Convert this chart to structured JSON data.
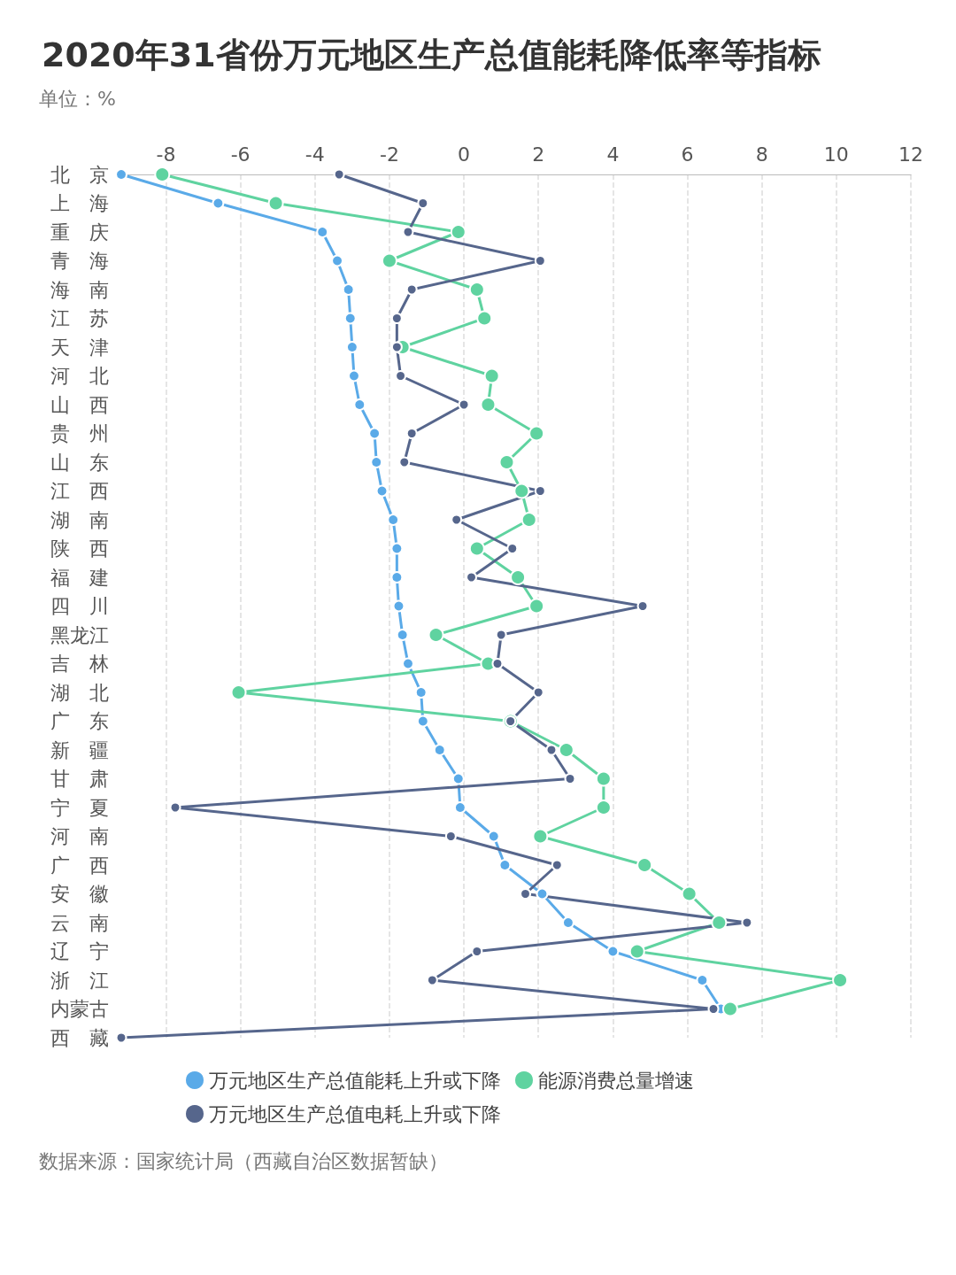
{
  "chart_data": {
    "type": "line",
    "orientation": "horizontal",
    "title": "2020年31省份万元地区生产总值能耗降低率等指标",
    "subtitle": "单位：%",
    "annotations": [
      "数据来源：国家统计局（西藏自治区数据暂缺）"
    ],
    "categories": [
      "北　京",
      "上　海",
      "重　庆",
      "青　海",
      "海　南",
      "江　苏",
      "天　津",
      "河　北",
      "山　西",
      "贵　州",
      "山　东",
      "江　西",
      "湖　南",
      "陕　西",
      "福　建",
      "四　川",
      "黑龙江",
      "吉　林",
      "湖　北",
      "广　东",
      "新　疆",
      "甘　肃",
      "宁　夏",
      "河　南",
      "广　西",
      "安　徽",
      "云　南",
      "辽　宁",
      "浙　江",
      "内蒙古",
      "西　藏"
    ],
    "series": [
      {
        "name": "万元地区生产总值能耗上升或下降",
        "color": "#5aaae8",
        "values": [
          -9.2,
          -6.6,
          -3.8,
          -3.4,
          -3.1,
          -3.05,
          -3.0,
          -2.95,
          -2.8,
          -2.4,
          -2.35,
          -2.2,
          -1.9,
          -1.8,
          -1.8,
          -1.75,
          -1.65,
          -1.5,
          -1.15,
          -1.1,
          -0.65,
          -0.15,
          -0.1,
          0.8,
          1.1,
          2.1,
          2.8,
          4.0,
          6.4,
          6.9,
          null
        ]
      },
      {
        "name": "能源消费总量增速",
        "color": "#5fd3a0",
        "values": [
          -8.1,
          -5.05,
          -0.15,
          -2.0,
          0.35,
          0.55,
          -1.65,
          0.75,
          0.65,
          1.95,
          1.15,
          1.55,
          1.75,
          0.35,
          1.45,
          1.95,
          -0.75,
          0.65,
          -6.05,
          1.25,
          2.75,
          3.75,
          3.75,
          2.05,
          4.85,
          6.05,
          6.85,
          4.65,
          10.1,
          7.15,
          null
        ]
      },
      {
        "name": "万元地区生产总值电耗上升或下降",
        "color": "#56668c",
        "values": [
          -3.35,
          -1.1,
          -1.5,
          2.05,
          -1.4,
          -1.8,
          -1.8,
          -1.7,
          0.0,
          -1.4,
          -1.6,
          2.05,
          -0.2,
          1.3,
          0.2,
          4.8,
          1.0,
          0.9,
          2.0,
          1.25,
          2.35,
          2.85,
          -7.75,
          -0.35,
          2.5,
          1.65,
          7.6,
          0.35,
          -0.85,
          6.7,
          -9.2
        ]
      }
    ],
    "xlim": [
      -9.2,
      12
    ],
    "xticks": [
      -8,
      -6,
      -4,
      -2,
      0,
      2,
      4,
      6,
      8,
      10,
      12
    ],
    "grid": "x",
    "legend": "bottom",
    "marker": "circle",
    "line_style": "solid"
  }
}
